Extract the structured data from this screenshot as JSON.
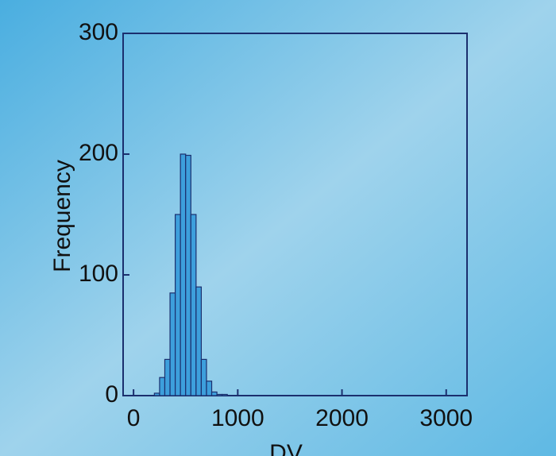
{
  "chart_data": {
    "type": "histogram",
    "x_label": "DV",
    "y_label": "Frequency",
    "bins": [
      200,
      250,
      300,
      350,
      400,
      450,
      500,
      550,
      600,
      650,
      700,
      750,
      800,
      850,
      900
    ],
    "counts": [
      2,
      15,
      30,
      85,
      150,
      200,
      199,
      150,
      90,
      30,
      12,
      3,
      1,
      1
    ],
    "color": "#3d9fdc",
    "edge_color": "#1b2f6e",
    "xlim": [
      -100,
      3200
    ],
    "xticks": [
      0,
      1000,
      2000,
      3000
    ],
    "ylim": [
      0,
      300
    ],
    "yticks": [
      0,
      100,
      200,
      300
    ]
  }
}
